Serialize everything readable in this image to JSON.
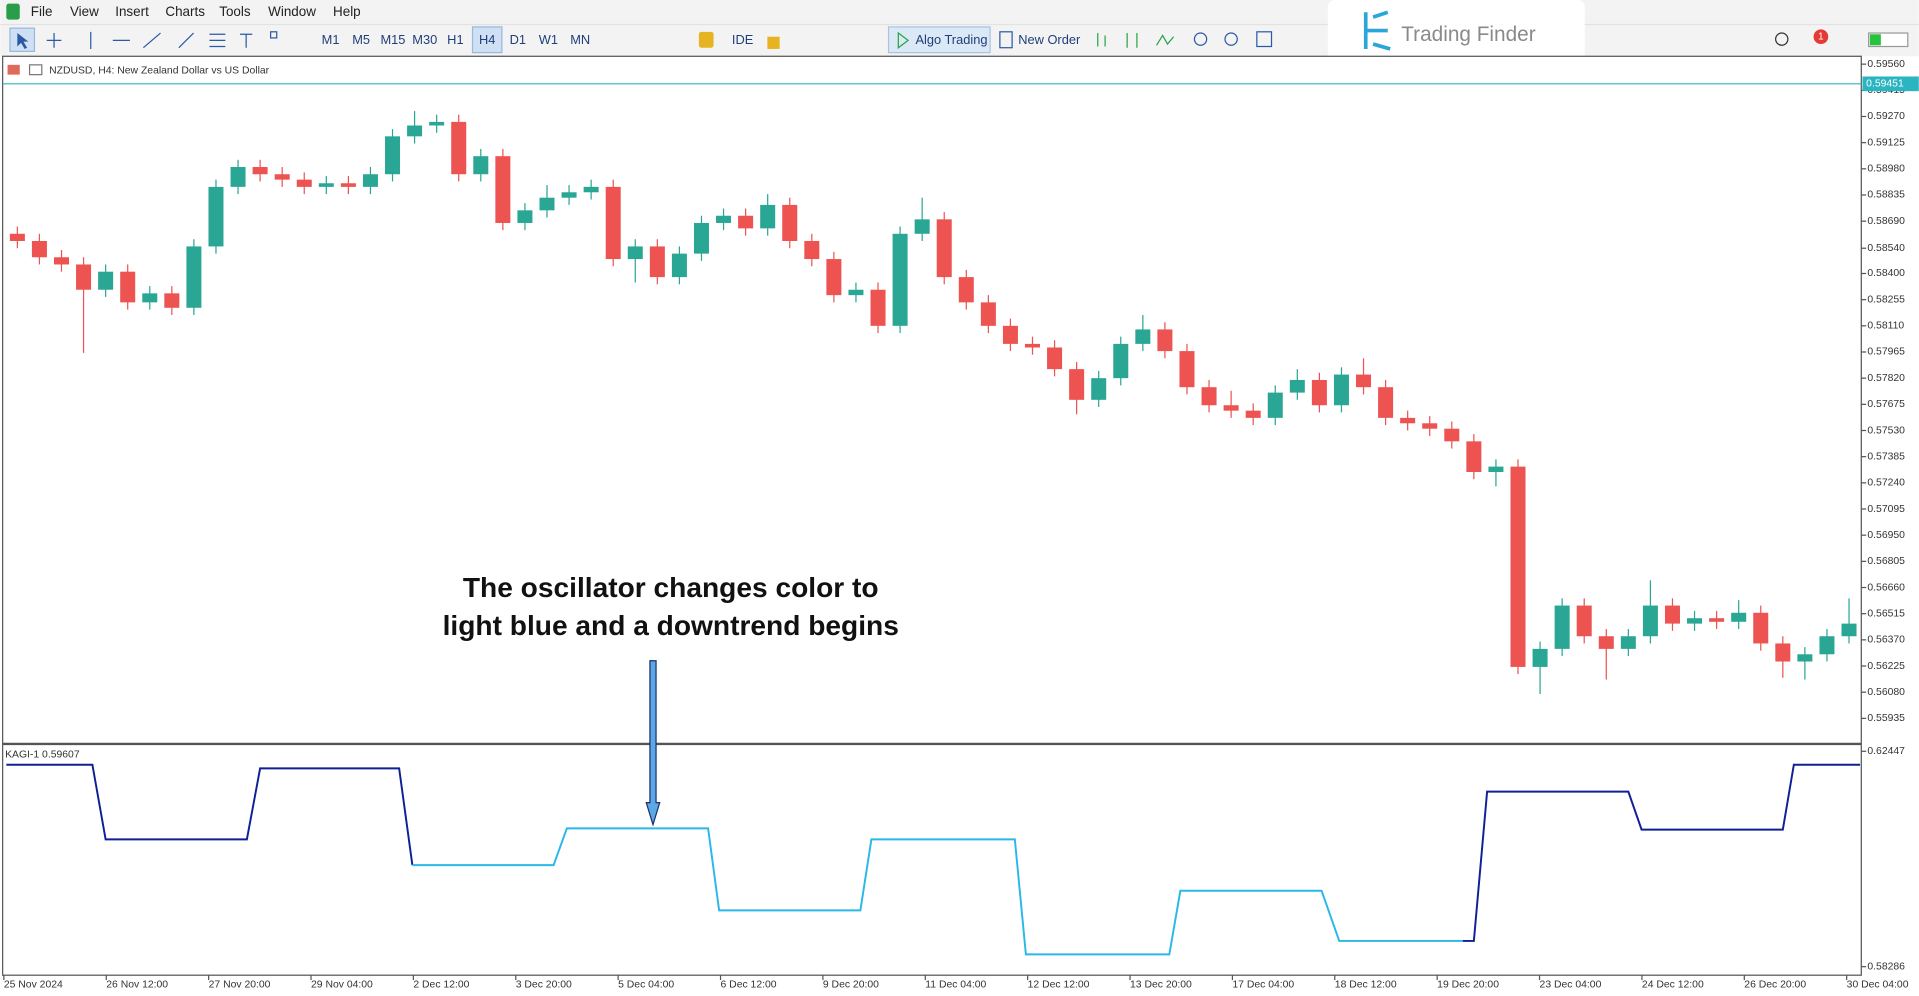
{
  "menu": [
    "File",
    "View",
    "Insert",
    "Charts",
    "Tools",
    "Window",
    "Help"
  ],
  "toolbar": {
    "timeframes": [
      "M1",
      "M5",
      "M15",
      "M30",
      "H1",
      "H4",
      "D1",
      "W1",
      "MN"
    ],
    "ide": "IDE",
    "algo": "Algo Trading",
    "new_order": "New Order",
    "notifications": "1"
  },
  "logo": "Trading Finder",
  "chart_data": [
    {
      "type": "candlestick",
      "title": "NZDUSD, H4:  New Zealand Dollar vs US Dollar",
      "open": [
        0.5862,
        0.5858,
        0.5849,
        0.5845,
        0.5831,
        0.5841,
        0.5824,
        0.5829,
        0.5821,
        0.5855,
        0.5888,
        0.5899,
        0.5895,
        0.5892,
        0.5888,
        0.589,
        0.5888,
        0.5895,
        0.5916,
        0.5922,
        0.5924,
        0.5895,
        0.5905,
        0.5868,
        0.5875,
        0.5882,
        0.5885,
        0.5888,
        0.5848,
        0.5855,
        0.5838,
        0.5851,
        0.5868,
        0.5872,
        0.5865,
        0.5878,
        0.5858,
        0.5848,
        0.5828,
        0.5831,
        0.5811,
        0.5862,
        0.587,
        0.5838,
        0.5824,
        0.5811,
        0.5801,
        0.5799,
        0.5787,
        0.577,
        0.5782,
        0.5801,
        0.5809,
        0.5797,
        0.5777,
        0.5767,
        0.5764,
        0.576,
        0.5774,
        0.5781,
        0.5767,
        0.5784,
        0.5777,
        0.576,
        0.5757,
        0.5754,
        0.5747,
        0.573,
        0.5733,
        0.5622,
        0.5632,
        0.5656,
        0.5639,
        0.5632,
        0.5639,
        0.5656,
        0.5646,
        0.5649,
        0.5647,
        0.5652,
        0.5635,
        0.5625,
        0.5629,
        0.5639
      ],
      "high": [
        0.5866,
        0.5862,
        0.5853,
        0.5849,
        0.5845,
        0.5845,
        0.5833,
        0.5833,
        0.5859,
        0.5892,
        0.5903,
        0.5903,
        0.5899,
        0.5896,
        0.5894,
        0.5894,
        0.5899,
        0.592,
        0.593,
        0.5928,
        0.5928,
        0.5909,
        0.5909,
        0.5879,
        0.5889,
        0.5889,
        0.5892,
        0.5892,
        0.5859,
        0.5859,
        0.5855,
        0.5872,
        0.5876,
        0.5876,
        0.5884,
        0.5882,
        0.5862,
        0.5852,
        0.5835,
        0.5835,
        0.5866,
        0.5882,
        0.5874,
        0.5842,
        0.5828,
        0.5815,
        0.5805,
        0.5803,
        0.5791,
        0.5786,
        0.5805,
        0.5817,
        0.5813,
        0.5801,
        0.5781,
        0.5775,
        0.5768,
        0.5778,
        0.5787,
        0.5785,
        0.5788,
        0.5793,
        0.5781,
        0.5764,
        0.5761,
        0.5758,
        0.5751,
        0.5737,
        0.5737,
        0.5636,
        0.566,
        0.566,
        0.5643,
        0.5643,
        0.567,
        0.566,
        0.5653,
        0.5653,
        0.5659,
        0.5656,
        0.5639,
        0.5633,
        0.5643,
        0.566
      ],
      "low": [
        0.5854,
        0.5845,
        0.5841,
        0.5796,
        0.5827,
        0.582,
        0.582,
        0.5817,
        0.5817,
        0.5851,
        0.5884,
        0.5891,
        0.5888,
        0.5884,
        0.5884,
        0.5884,
        0.5884,
        0.5891,
        0.5912,
        0.5918,
        0.5891,
        0.5891,
        0.5864,
        0.5864,
        0.5871,
        0.5878,
        0.5881,
        0.5844,
        0.5835,
        0.5834,
        0.5834,
        0.5847,
        0.5864,
        0.5861,
        0.5861,
        0.5854,
        0.5844,
        0.5824,
        0.5824,
        0.5807,
        0.5807,
        0.5858,
        0.5834,
        0.582,
        0.5807,
        0.5797,
        0.5795,
        0.5783,
        0.5762,
        0.5766,
        0.5778,
        0.5797,
        0.5793,
        0.5773,
        0.5763,
        0.576,
        0.5756,
        0.5756,
        0.577,
        0.5763,
        0.5763,
        0.5773,
        0.5756,
        0.5753,
        0.575,
        0.5743,
        0.5726,
        0.5722,
        0.5618,
        0.5607,
        0.5628,
        0.5635,
        0.5615,
        0.5628,
        0.5635,
        0.5642,
        0.5642,
        0.5643,
        0.5643,
        0.5631,
        0.5616,
        0.5615,
        0.5625,
        0.5635
      ],
      "close": [
        0.5858,
        0.5849,
        0.5845,
        0.5831,
        0.5841,
        0.5824,
        0.5829,
        0.5821,
        0.5855,
        0.5888,
        0.5899,
        0.5895,
        0.5892,
        0.5888,
        0.589,
        0.5888,
        0.5895,
        0.5916,
        0.5922,
        0.5924,
        0.5895,
        0.5905,
        0.5868,
        0.5875,
        0.5882,
        0.5885,
        0.5888,
        0.5848,
        0.5855,
        0.5838,
        0.5851,
        0.5868,
        0.5872,
        0.5865,
        0.5878,
        0.5858,
        0.5848,
        0.5828,
        0.5831,
        0.5811,
        0.5862,
        0.587,
        0.5838,
        0.5824,
        0.5811,
        0.5801,
        0.5799,
        0.5787,
        0.577,
        0.5782,
        0.5801,
        0.5809,
        0.5797,
        0.5777,
        0.5767,
        0.5764,
        0.576,
        0.5774,
        0.5781,
        0.5767,
        0.5784,
        0.5777,
        0.576,
        0.5757,
        0.5754,
        0.5747,
        0.573,
        0.5733,
        0.5622,
        0.5632,
        0.5656,
        0.5639,
        0.5632,
        0.5639,
        0.5656,
        0.5646,
        0.5649,
        0.5647,
        0.5652,
        0.5635,
        0.5625,
        0.5629,
        0.5639,
        0.5646
      ],
      "up_color": "#2aa695",
      "down_color": "#ec5351",
      "xlim": [
        0,
        84
      ],
      "ylim": [
        0.558,
        0.5959
      ],
      "yticks": [
        {
          "value": 0.5956,
          "label": "0.59560"
        },
        0.59415,
        {
          "value": 0.5927,
          "label": "0.59270"
        },
        0.59125,
        {
          "value": 0.5898,
          "label": "0.58980"
        },
        0.58835,
        {
          "value": 0.5869,
          "label": "0.58690"
        },
        {
          "value": 0.5854,
          "label": "0.58540"
        },
        {
          "value": 0.584,
          "label": "0.58400"
        },
        0.58255,
        {
          "value": 0.5811,
          "label": "0.58110"
        },
        0.57965,
        {
          "value": 0.5782,
          "label": "0.57820"
        },
        0.57675,
        {
          "value": 0.5753,
          "label": "0.57530"
        },
        0.57385,
        {
          "value": 0.5724,
          "label": "0.57240"
        },
        0.57095,
        {
          "value": 0.5695,
          "label": "0.56950"
        },
        0.56805,
        {
          "value": 0.5666,
          "label": "0.56660"
        },
        0.56515,
        {
          "value": 0.5637,
          "label": "0.56370"
        },
        0.56225,
        {
          "value": 0.5608,
          "label": "0.56080"
        },
        0.55935
      ],
      "last_price": 0.59451,
      "last_price_color": "#2bb5c0",
      "annotation": [
        "The oscillator changes color to",
        "light blue and a downtrend begins"
      ]
    },
    {
      "type": "kagi",
      "title": "KAGI-1 0.59607",
      "series": [
        {
          "color": "#0f1f96",
          "x": [
            0,
            3.9,
            4.5,
            10.9,
            11.5,
            17.8,
            18.4
          ],
          "values": [
            0.62187,
            0.62187,
            0.60745,
            0.60745,
            0.62116,
            0.62116,
            0.60248
          ]
        },
        {
          "color": "#2bb8e8",
          "x": [
            18.4,
            24.8,
            25.4,
            31.8,
            32.3,
            38.7,
            39.2,
            45.7,
            46.2,
            52.7,
            53.2,
            59.6,
            60.4,
            66.0
          ],
          "values": [
            0.60248,
            0.60248,
            0.60957,
            0.60957,
            0.59373,
            0.59373,
            0.60745,
            0.60745,
            0.58523,
            0.58523,
            0.59752,
            0.59752,
            0.58783,
            0.58783
          ]
        },
        {
          "color": "#0f1f96",
          "x": [
            66.0,
            66.5,
            67.1,
            73.5,
            74.1,
            80.5,
            81.0,
            84.0
          ],
          "values": [
            0.58783,
            0.58783,
            0.61667,
            0.61667,
            0.60934,
            0.60934,
            0.62187,
            0.62187
          ]
        }
      ],
      "xlim": [
        0,
        84
      ],
      "ylim": [
        0.58121,
        0.62565
      ],
      "yticks": [
        0.62447,
        0.58286
      ],
      "x_labels": [
        "25 Nov 2024",
        "26 Nov 12:00",
        "27 Nov 20:00",
        "29 Nov 04:00",
        "2 Dec 12:00",
        "3 Dec 20:00",
        "5 Dec 04:00",
        "6 Dec 12:00",
        "9 Dec 20:00",
        "11 Dec 04:00",
        "12 Dec 12:00",
        "13 Dec 20:00",
        "17 Dec 04:00",
        "18 Dec 12:00",
        "19 Dec 20:00",
        "23 Dec 04:00",
        "24 Dec 12:00",
        "26 Dec 20:00",
        "30 Dec 04:00"
      ]
    }
  ]
}
